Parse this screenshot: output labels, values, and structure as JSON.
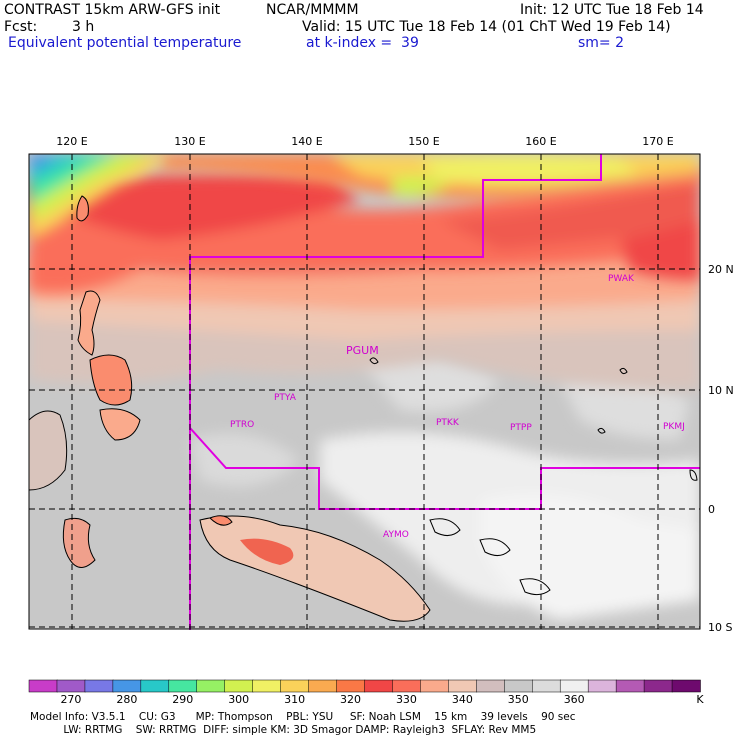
{
  "header": {
    "title": "CONTRAST 15km ARW-GFS init",
    "org": "NCAR/MMMM",
    "init": "Init: 12 UTC Tue 18 Feb 14",
    "fcst_label": "Fcst:",
    "fcst_value": "3 h",
    "valid": "Valid: 15 UTC Tue 18 Feb 14 (01 ChT Wed 19 Feb 14)",
    "field": "Equivalent potential temperature",
    "level": "at k-index =  39",
    "smooth": "sm= 2"
  },
  "map": {
    "lon_labels": [
      "120 E",
      "130 E",
      "140 E",
      "150 E",
      "160 E",
      "170 E"
    ],
    "lat_labels": [
      "20 N",
      "10 N",
      "0",
      "10 S"
    ],
    "stations": [
      "PWAK",
      "PGUM",
      "PTYA",
      "PTRO",
      "PTKK",
      "PTPP",
      "PKMJ",
      "AYMO"
    ]
  },
  "colorbar": {
    "colors": [
      "#c83cc8",
      "#a05ac8",
      "#7878e6",
      "#4696e6",
      "#28c8c8",
      "#46e6a0",
      "#96f064",
      "#d2f050",
      "#f0f064",
      "#fad25a",
      "#faaa50",
      "#fa7846",
      "#f04646",
      "#fa6e5a",
      "#faaa8c",
      "#f0c8b4",
      "#d2bebe",
      "#c8c8c8",
      "#dcdcdc",
      "#f0f0f0",
      "#dcb4dc",
      "#b45ab4",
      "#8c288c",
      "#6e0a6e"
    ],
    "ticks": [
      "270",
      "280",
      "290",
      "300",
      "310",
      "320",
      "330",
      "340",
      "350",
      "360",
      "K"
    ]
  },
  "footer": {
    "line1": "Model Info: V3.5.1    CU: G3      MP: Thompson    PBL: YSU     SF: Noah LSM    15 km    39 levels    90 sec",
    "line2": "          LW: RRTMG    SW: RRTMG  DIFF: simple KM: 3D Smagor DAMP: Rayleigh3  SFLAY: Rev MM5"
  }
}
